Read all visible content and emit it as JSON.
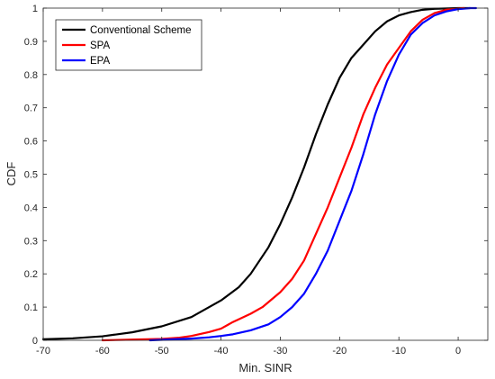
{
  "chart_data": {
    "type": "line",
    "title": "",
    "xlabel": "Min. SINR",
    "ylabel": "CDF",
    "xlim": [
      -70,
      5
    ],
    "ylim": [
      0,
      1
    ],
    "xticks": [
      -70,
      -60,
      -50,
      -40,
      -30,
      -20,
      -10,
      0
    ],
    "yticks": [
      0,
      0.1,
      0.2,
      0.3,
      0.4,
      0.5,
      0.6,
      0.7,
      0.8,
      0.9,
      1
    ],
    "grid": false,
    "legend_position": "top-left",
    "series": [
      {
        "name": "Conventional Scheme",
        "color": "#000000",
        "x": [
          -70,
          -65,
          -60,
          -55,
          -50,
          -45,
          -40,
          -37,
          -35,
          -32,
          -30,
          -28,
          -26,
          -24,
          -22,
          -20,
          -18,
          -16,
          -14,
          -12,
          -10,
          -8,
          -6,
          -4,
          -2,
          0,
          2
        ],
        "y": [
          0.003,
          0.006,
          0.012,
          0.024,
          0.042,
          0.07,
          0.12,
          0.16,
          0.2,
          0.28,
          0.35,
          0.43,
          0.52,
          0.62,
          0.71,
          0.79,
          0.85,
          0.89,
          0.93,
          0.96,
          0.978,
          0.988,
          0.995,
          0.998,
          0.999,
          1.0,
          1.0
        ]
      },
      {
        "name": "SPA",
        "color": "#ff0000",
        "x": [
          -60,
          -55,
          -50,
          -47,
          -45,
          -42,
          -40,
          -38,
          -35,
          -33,
          -30,
          -28,
          -26,
          -24,
          -22,
          -20,
          -18,
          -16,
          -14,
          -12,
          -10,
          -8,
          -6,
          -4,
          -2,
          0,
          1
        ],
        "y": [
          0.0,
          0.002,
          0.004,
          0.008,
          0.013,
          0.025,
          0.035,
          0.055,
          0.08,
          0.1,
          0.145,
          0.185,
          0.24,
          0.32,
          0.4,
          0.49,
          0.58,
          0.68,
          0.76,
          0.83,
          0.88,
          0.93,
          0.965,
          0.985,
          0.995,
          0.999,
          1.0
        ]
      },
      {
        "name": "EPA",
        "color": "#0000ff",
        "x": [
          -52,
          -48,
          -45,
          -42,
          -40,
          -38,
          -35,
          -32,
          -30,
          -28,
          -26,
          -24,
          -22,
          -20,
          -18,
          -16,
          -14,
          -12,
          -10,
          -8,
          -6,
          -4,
          -2,
          0,
          2,
          3
        ],
        "y": [
          0.0,
          0.003,
          0.005,
          0.009,
          0.013,
          0.018,
          0.03,
          0.048,
          0.07,
          0.1,
          0.14,
          0.2,
          0.27,
          0.36,
          0.45,
          0.56,
          0.68,
          0.78,
          0.86,
          0.92,
          0.955,
          0.978,
          0.99,
          0.997,
          1.0,
          1.0
        ]
      }
    ]
  }
}
